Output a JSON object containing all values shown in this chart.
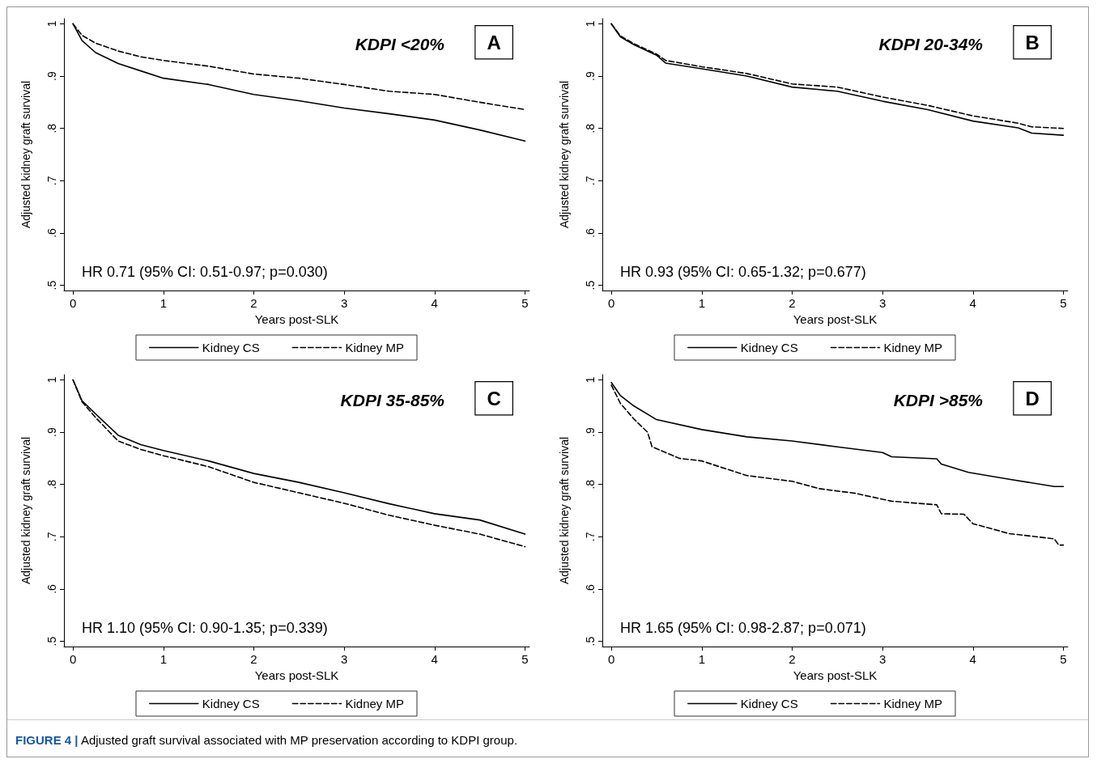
{
  "chart_data": [
    {
      "type": "line",
      "title": "KDPI <20%",
      "xlabel": "Years post-SLK",
      "ylabel": "Adjusted kidney graft survival",
      "annotations": [
        "HR 0.71 (95% CI: 0.51-0.97; p=0.030)",
        "A"
      ],
      "xlim": [
        -0.1,
        5.05
      ],
      "ylim": [
        0.49,
        1.01
      ],
      "xticks": [
        0,
        1,
        2,
        3,
        4,
        5
      ],
      "yticks": [
        {
          "value": 0.5,
          "label": ".5"
        },
        {
          "value": 0.6,
          "label": ".6"
        },
        {
          "value": 0.7,
          "label": ".7"
        },
        {
          "value": 0.8,
          "label": ".8"
        },
        {
          "value": 0.9,
          "label": ".9"
        },
        {
          "value": 1,
          "label": "1"
        }
      ],
      "grid": false,
      "legend": "bottom",
      "marker": "none",
      "series": [
        {
          "name": "Kidney CS",
          "color": "#000000",
          "line_style": "solid",
          "x": [
            0,
            0.1,
            0.25,
            0.5,
            0.75,
            1,
            1.5,
            2,
            2.5,
            3,
            3.5,
            4,
            4.5,
            5
          ],
          "values": [
            1.0,
            0.968,
            0.945,
            0.924,
            0.91,
            0.896,
            0.884,
            0.865,
            0.853,
            0.839,
            0.828,
            0.816,
            0.797,
            0.776
          ]
        },
        {
          "name": "Kidney MP",
          "color": "#000000",
          "line_style": "dashed",
          "x": [
            0,
            0.1,
            0.25,
            0.5,
            0.75,
            1,
            1.5,
            2,
            2.5,
            3,
            3.5,
            4,
            4.5,
            5
          ],
          "values": [
            1.0,
            0.978,
            0.963,
            0.948,
            0.937,
            0.93,
            0.919,
            0.904,
            0.896,
            0.884,
            0.871,
            0.865,
            0.85,
            0.836
          ]
        }
      ]
    },
    {
      "type": "line",
      "title": "KDPI 20-34%",
      "xlabel": "Years post-SLK",
      "ylabel": "Adjusted kidney graft survival",
      "annotations": [
        "HR 0.93 (95% CI: 0.65-1.32; p=0.677)",
        "B"
      ],
      "xlim": [
        -0.1,
        5.05
      ],
      "ylim": [
        0.49,
        1.01
      ],
      "xticks": [
        0,
        1,
        2,
        3,
        4,
        5
      ],
      "yticks": [
        {
          "value": 0.5,
          "label": ".5"
        },
        {
          "value": 0.6,
          "label": ".6"
        },
        {
          "value": 0.7,
          "label": ".7"
        },
        {
          "value": 0.8,
          "label": ".8"
        },
        {
          "value": 0.9,
          "label": ".9"
        },
        {
          "value": 1,
          "label": "1"
        }
      ],
      "grid": false,
      "legend": "bottom",
      "marker": "none",
      "series": [
        {
          "name": "Kidney CS",
          "color": "#000000",
          "line_style": "solid",
          "x": [
            0,
            0.1,
            0.25,
            0.5,
            0.6,
            1,
            1.5,
            2,
            2.5,
            3,
            3.5,
            4,
            4.5,
            4.65,
            5
          ],
          "values": [
            1.0,
            0.975,
            0.96,
            0.94,
            0.925,
            0.914,
            0.9,
            0.879,
            0.871,
            0.852,
            0.836,
            0.814,
            0.801,
            0.791,
            0.787
          ]
        },
        {
          "name": "Kidney MP",
          "color": "#000000",
          "line_style": "dashed",
          "x": [
            0,
            0.1,
            0.25,
            0.5,
            0.6,
            1,
            1.5,
            2,
            2.5,
            3,
            3.5,
            4,
            4.5,
            4.65,
            5
          ],
          "values": [
            1.0,
            0.977,
            0.962,
            0.942,
            0.93,
            0.918,
            0.905,
            0.885,
            0.879,
            0.86,
            0.844,
            0.824,
            0.81,
            0.803,
            0.8
          ]
        }
      ]
    },
    {
      "type": "line",
      "title": "KDPI 35-85%",
      "xlabel": "Years post-SLK",
      "ylabel": "Adjusted kidney graft survival",
      "annotations": [
        "HR 1.10 (95% CI: 0.90-1.35; p=0.339)",
        "C"
      ],
      "xlim": [
        -0.1,
        5.05
      ],
      "ylim": [
        0.49,
        1.01
      ],
      "xticks": [
        0,
        1,
        2,
        3,
        4,
        5
      ],
      "yticks": [
        {
          "value": 0.5,
          "label": ".5"
        },
        {
          "value": 0.6,
          "label": ".6"
        },
        {
          "value": 0.7,
          "label": ".7"
        },
        {
          "value": 0.8,
          "label": ".8"
        },
        {
          "value": 0.9,
          "label": ".9"
        },
        {
          "value": 1,
          "label": "1"
        }
      ],
      "grid": false,
      "legend": "bottom",
      "marker": "none",
      "series": [
        {
          "name": "Kidney CS",
          "color": "#000000",
          "line_style": "solid",
          "x": [
            0,
            0.1,
            0.25,
            0.5,
            0.75,
            1,
            1.5,
            2,
            2.5,
            3,
            3.5,
            4,
            4.5,
            5
          ],
          "values": [
            1.0,
            0.96,
            0.935,
            0.894,
            0.876,
            0.865,
            0.845,
            0.821,
            0.804,
            0.784,
            0.763,
            0.744,
            0.732,
            0.705
          ]
        },
        {
          "name": "Kidney MP",
          "color": "#000000",
          "line_style": "dashed",
          "x": [
            0,
            0.1,
            0.25,
            0.5,
            0.75,
            1,
            1.5,
            2,
            2.5,
            3,
            3.5,
            4,
            4.5,
            5
          ],
          "values": [
            1.0,
            0.958,
            0.928,
            0.883,
            0.867,
            0.855,
            0.834,
            0.804,
            0.784,
            0.764,
            0.741,
            0.722,
            0.705,
            0.681
          ]
        }
      ]
    },
    {
      "type": "line",
      "title": "KDPI >85%",
      "xlabel": "Years post-SLK",
      "ylabel": "Adjusted kidney graft survival",
      "annotations": [
        "HR 1.65 (95% CI: 0.98-2.87; p=0.071)",
        "D",
        "FIGURE 4 | Adjusted graft survival associated with MP preservation according to KDPI group."
      ],
      "xlim": [
        -0.1,
        5.05
      ],
      "ylim": [
        0.49,
        1.01
      ],
      "xticks": [
        0,
        1,
        2,
        3,
        4,
        5
      ],
      "yticks": [
        {
          "value": 0.5,
          "label": ".5"
        },
        {
          "value": 0.6,
          "label": ".6"
        },
        {
          "value": 0.7,
          "label": ".7"
        },
        {
          "value": 0.8,
          "label": ".8"
        },
        {
          "value": 0.9,
          "label": ".9"
        },
        {
          "value": 1,
          "label": "1"
        }
      ],
      "grid": false,
      "legend": "bottom",
      "marker": "none",
      "series": [
        {
          "name": "Kidney CS",
          "color": "#000000",
          "line_style": "solid",
          "x": [
            0,
            0.1,
            0.25,
            0.5,
            1,
            1.5,
            2,
            2.5,
            3,
            3.1,
            3.6,
            3.65,
            3.95,
            4.4,
            4.9,
            5
          ],
          "values": [
            0.995,
            0.97,
            0.95,
            0.924,
            0.905,
            0.891,
            0.883,
            0.872,
            0.861,
            0.853,
            0.849,
            0.839,
            0.823,
            0.81,
            0.796,
            0.796
          ]
        },
        {
          "name": "Kidney MP",
          "color": "#000000",
          "line_style": "dashed",
          "x": [
            0,
            0.1,
            0.25,
            0.4,
            0.45,
            0.75,
            1,
            1.3,
            1.5,
            2,
            2.3,
            2.7,
            3.1,
            3.6,
            3.65,
            3.9,
            4,
            4.4,
            4.9,
            4.95,
            5
          ],
          "values": [
            0.99,
            0.955,
            0.925,
            0.9,
            0.872,
            0.85,
            0.845,
            0.828,
            0.817,
            0.806,
            0.792,
            0.783,
            0.768,
            0.761,
            0.744,
            0.743,
            0.725,
            0.706,
            0.696,
            0.684,
            0.684
          ]
        }
      ]
    }
  ]
}
